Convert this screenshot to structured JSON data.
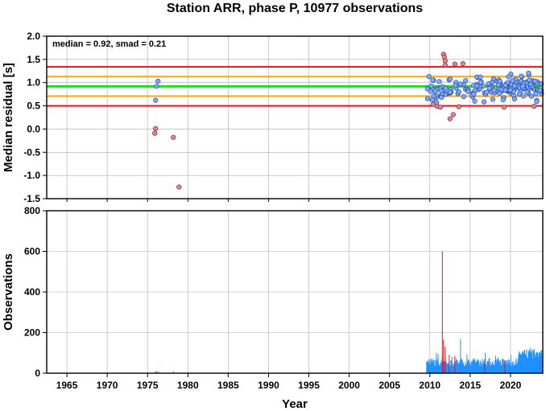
{
  "title": "Station ARR, phase P, 10977 observations",
  "annotation": "median = 0.92, smad = 0.21",
  "colors": {
    "median_line": "#22dd22",
    "one_smad_line": "#ffa500",
    "two_smad_line": "#ee1111",
    "inlier_point": "#7fa8ff",
    "outlier_point": "#ff7a6a",
    "obs_bar": "#1f8fff",
    "obs_outlier_bar": "#ee1111",
    "grid": "#a9a9a9"
  },
  "chart_data": [
    {
      "type": "scatter",
      "ylabel": "Median residual [s]",
      "xlim": [
        1962.5,
        2024
      ],
      "ylim": [
        -1.5,
        2.0
      ],
      "yticks": [
        "2.0",
        "1.5",
        "1.0",
        "0.5",
        "0.0",
        "-0.5",
        "-1.0",
        "-1.5"
      ],
      "grid": true,
      "reference_lines": [
        {
          "name": "median",
          "y": 0.92,
          "color_key": "median_line"
        },
        {
          "name": "+1 smad",
          "y": 1.13,
          "color_key": "one_smad_line"
        },
        {
          "name": "-1 smad",
          "y": 0.71,
          "color_key": "one_smad_line"
        },
        {
          "name": "+2 smad",
          "y": 1.34,
          "color_key": "two_smad_line"
        },
        {
          "name": "-2 smad",
          "y": 0.5,
          "color_key": "two_smad_line"
        }
      ],
      "points_early": [
        {
          "x": 1976.3,
          "y": 1.03,
          "outlier": false
        },
        {
          "x": 1976.1,
          "y": 0.92,
          "outlier": false
        },
        {
          "x": 1976.0,
          "y": 0.62,
          "outlier": false
        },
        {
          "x": 1976.0,
          "y": 0.01,
          "outlier": true
        },
        {
          "x": 1975.9,
          "y": -0.09,
          "outlier": true
        },
        {
          "x": 1978.2,
          "y": -0.18,
          "outlier": true
        },
        {
          "x": 1978.9,
          "y": -1.25,
          "outlier": true
        }
      ],
      "points_recent_outliers": [
        {
          "x": 2011.7,
          "y": 1.61
        },
        {
          "x": 2011.8,
          "y": 1.55
        },
        {
          "x": 2011.9,
          "y": 1.47
        },
        {
          "x": 2011.9,
          "y": 1.38
        },
        {
          "x": 2013.1,
          "y": 1.4
        },
        {
          "x": 2014.1,
          "y": 1.41
        },
        {
          "x": 2010.4,
          "y": 0.53
        },
        {
          "x": 2010.9,
          "y": 0.49
        },
        {
          "x": 2011.3,
          "y": 0.47
        },
        {
          "x": 2012.5,
          "y": 0.22
        },
        {
          "x": 2012.9,
          "y": 0.31
        },
        {
          "x": 2013.6,
          "y": 0.48
        },
        {
          "x": 2019.2,
          "y": 0.47
        },
        {
          "x": 2022.9,
          "y": 0.49
        }
      ],
      "dense_cluster": {
        "x_range": [
          2009.7,
          2023.9
        ],
        "y_range": [
          0.52,
          1.25
        ],
        "count": 180,
        "note": "dense band of inlier points around the median"
      }
    },
    {
      "type": "bar",
      "xlabel": "Year",
      "ylabel": "Observations",
      "xlim": [
        1962.5,
        2024
      ],
      "ylim": [
        0,
        800
      ],
      "xticks": [
        "1965",
        "1970",
        "1975",
        "1980",
        "1985",
        "1990",
        "1995",
        "2000",
        "2005",
        "2010",
        "2015",
        "2020"
      ],
      "yticks": [
        "800",
        "600",
        "400",
        "200",
        "0"
      ],
      "grid": true,
      "early_bars": [
        {
          "x": 1976.0,
          "value": 12,
          "outlier": false
        },
        {
          "x": 1976.3,
          "value": 10,
          "outlier": false
        },
        {
          "x": 1976.1,
          "value": 6,
          "outlier": true
        },
        {
          "x": 1978.2,
          "value": 8,
          "outlier": true
        }
      ],
      "recent_bars": {
        "x_range": [
          2009.6,
          2024.0
        ],
        "typical_range": [
          25,
          130
        ],
        "note": "dense daily counts; mostly 40-80, rising toward 100-130 after 2021"
      },
      "recent_spikes": [
        {
          "x": 2011.55,
          "value": 600,
          "outlier": true
        },
        {
          "x": 2011.7,
          "value": 165,
          "outlier": true
        },
        {
          "x": 2011.9,
          "value": 130,
          "outlier": true
        },
        {
          "x": 2012.4,
          "value": 90,
          "outlier": true
        },
        {
          "x": 2013.1,
          "value": 85,
          "outlier": true
        },
        {
          "x": 2013.8,
          "value": 168,
          "outlier": false
        },
        {
          "x": 2014.6,
          "value": 92,
          "outlier": false
        },
        {
          "x": 2016.8,
          "value": 70,
          "outlier": true
        },
        {
          "x": 2019.3,
          "value": 60,
          "outlier": true
        }
      ]
    }
  ]
}
